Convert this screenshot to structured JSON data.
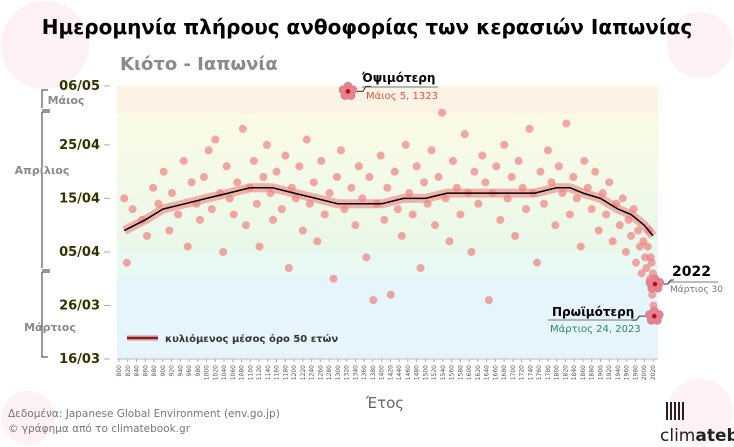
{
  "title": "Ημερομηνία πλήρους ανθοφορίας των κερασιών Ιαπωνίας",
  "subtitle": "Κιότο - Ιαπωνία",
  "source_line": "Δεδομένα: Japanese Global Environment (env.go.jp)",
  "credit_line": "© γράφημα από το climatebook.gr",
  "logo_text_light": "clim",
  "logo_text_bold": "atebook",
  "colors": {
    "points": "#f26d6d",
    "trend": "#000000",
    "band": "#f08080",
    "highlight_latest": "#e8533a",
    "highlight_earliest": "#2e8b57"
  },
  "months": [
    "Μάιος",
    "Απρίλιος",
    "Μάρτιος"
  ],
  "chart_data": {
    "type": "scatter",
    "xlabel": "Έτος",
    "ylabel": "",
    "xlim": [
      800,
      2020
    ],
    "ylim": [
      "16/03",
      "06/05"
    ],
    "x_ticks_step": 20,
    "y_ticks": [
      "06/05",
      "25/04",
      "15/04",
      "05/04",
      "26/03",
      "16/03"
    ],
    "grid": false,
    "legend": {
      "position": "bottom-left",
      "label": "κυλιόμενος μέσος όρο 50 ετών"
    },
    "points": [
      [
        812,
        "15/04"
      ],
      [
        818,
        "03/04"
      ],
      [
        831,
        "13/04"
      ],
      [
        853,
        "11/04"
      ],
      [
        864,
        "08/04"
      ],
      [
        878,
        "17/04"
      ],
      [
        890,
        "14/04"
      ],
      [
        902,
        "20/04"
      ],
      [
        915,
        "09/04"
      ],
      [
        921,
        "16/04"
      ],
      [
        935,
        "12/04"
      ],
      [
        948,
        "22/04"
      ],
      [
        957,
        "06/04"
      ],
      [
        966,
        "18/04"
      ],
      [
        977,
        "14/04"
      ],
      [
        985,
        "11/04"
      ],
      [
        994,
        "19/04"
      ],
      [
        1005,
        "24/04"
      ],
      [
        1012,
        "13/04"
      ],
      [
        1020,
        "26/04"
      ],
      [
        1031,
        "16/04"
      ],
      [
        1038,
        "05/04"
      ],
      [
        1046,
        "21/04"
      ],
      [
        1053,
        "15/04"
      ],
      [
        1062,
        "12/04"
      ],
      [
        1070,
        "18/04"
      ],
      [
        1083,
        "28/04"
      ],
      [
        1090,
        "10/04"
      ],
      [
        1099,
        "17/04"
      ],
      [
        1108,
        "22/04"
      ],
      [
        1115,
        "14/04"
      ],
      [
        1121,
        "06/04"
      ],
      [
        1130,
        "19/04"
      ],
      [
        1138,
        "25/04"
      ],
      [
        1146,
        "16/04"
      ],
      [
        1152,
        "11/04"
      ],
      [
        1160,
        "20/04"
      ],
      [
        1172,
        "13/04"
      ],
      [
        1180,
        "23/04"
      ],
      [
        1188,
        "02/04"
      ],
      [
        1195,
        "17/04"
      ],
      [
        1204,
        "15/04"
      ],
      [
        1212,
        "21/04"
      ],
      [
        1220,
        "09/04"
      ],
      [
        1229,
        "26/04"
      ],
      [
        1236,
        "14/04"
      ],
      [
        1245,
        "18/04"
      ],
      [
        1253,
        "07/04"
      ],
      [
        1262,
        "22/04"
      ],
      [
        1270,
        "12/04"
      ],
      [
        1281,
        "16/04"
      ],
      [
        1290,
        "31/03"
      ],
      [
        1298,
        "19/04"
      ],
      [
        1307,
        "24/04"
      ],
      [
        1315,
        "13/04"
      ],
      [
        1331,
        "17/04"
      ],
      [
        1340,
        "10/04"
      ],
      [
        1348,
        "21/04"
      ],
      [
        1356,
        "15/04"
      ],
      [
        1365,
        "04/04"
      ],
      [
        1372,
        "19/04"
      ],
      [
        1381,
        "27/03"
      ],
      [
        1389,
        "14/04"
      ],
      [
        1398,
        "23/04"
      ],
      [
        1406,
        "11/04"
      ],
      [
        1413,
        "17/04"
      ],
      [
        1421,
        "28/03"
      ],
      [
        1430,
        "20/04"
      ],
      [
        1437,
        "13/04"
      ],
      [
        1446,
        "08/04"
      ],
      [
        1455,
        "25/04"
      ],
      [
        1463,
        "16/04"
      ],
      [
        1471,
        "12/04"
      ],
      [
        1480,
        "21/04"
      ],
      [
        1489,
        "02/04"
      ],
      [
        1497,
        "18/04"
      ],
      [
        1505,
        "14/04"
      ],
      [
        1514,
        "24/04"
      ],
      [
        1522,
        "10/04"
      ],
      [
        1530,
        "19/04"
      ],
      [
        1538,
        "01/05"
      ],
      [
        1546,
        "15/04"
      ],
      [
        1555,
        "07/04"
      ],
      [
        1563,
        "22/04"
      ],
      [
        1572,
        "17/04"
      ],
      [
        1580,
        "12/04"
      ],
      [
        1590,
        "27/04"
      ],
      [
        1598,
        "16/04"
      ],
      [
        1605,
        "05/04"
      ],
      [
        1612,
        "20/04"
      ],
      [
        1621,
        "14/04"
      ],
      [
        1630,
        "23/04"
      ],
      [
        1637,
        "18/04"
      ],
      [
        1645,
        "27/03"
      ],
      [
        1654,
        "16/04"
      ],
      [
        1662,
        "21/04"
      ],
      [
        1671,
        "11/04"
      ],
      [
        1680,
        "25/04"
      ],
      [
        1688,
        "15/04"
      ],
      [
        1697,
        "19/04"
      ],
      [
        1705,
        "08/04"
      ],
      [
        1713,
        "22/04"
      ],
      [
        1722,
        "17/04"
      ],
      [
        1730,
        "13/04"
      ],
      [
        1738,
        "28/04"
      ],
      [
        1746,
        "16/04"
      ],
      [
        1755,
        "03/04"
      ],
      [
        1763,
        "20/04"
      ],
      [
        1771,
        "14/04"
      ],
      [
        1780,
        "24/04"
      ],
      [
        1788,
        "18/04"
      ],
      [
        1797,
        "10/04"
      ],
      [
        1805,
        "21/04"
      ],
      [
        1813,
        "16/04"
      ],
      [
        1822,
        "29/04"
      ],
      [
        1830,
        "12/04"
      ],
      [
        1838,
        "19/04"
      ],
      [
        1846,
        "15/04"
      ],
      [
        1855,
        "06/04"
      ],
      [
        1863,
        "22/04"
      ],
      [
        1871,
        "17/04"
      ],
      [
        1880,
        "13/04"
      ],
      [
        1888,
        "20/04"
      ],
      [
        1896,
        "09/04"
      ],
      [
        1905,
        "16/04"
      ],
      [
        1913,
        "12/04"
      ],
      [
        1920,
        "18/04"
      ],
      [
        1928,
        "07/04"
      ],
      [
        1936,
        "14/04"
      ],
      [
        1944,
        "10/04"
      ],
      [
        1951,
        "15/04"
      ],
      [
        1958,
        "05/04"
      ],
      [
        1964,
        "11/04"
      ],
      [
        1970,
        "08/04"
      ],
      [
        1976,
        "13/04"
      ],
      [
        1981,
        "03/04"
      ],
      [
        1986,
        "09/04"
      ],
      [
        1990,
        "06/04"
      ],
      [
        1994,
        "01/04"
      ],
      [
        1998,
        "07/04"
      ],
      [
        2002,
        "04/04"
      ],
      [
        2005,
        "02/04"
      ],
      [
        2008,
        "06/04"
      ],
      [
        2011,
        "09/04"
      ],
      [
        2013,
        "31/03"
      ],
      [
        2015,
        "04/04"
      ],
      [
        2017,
        "03/04"
      ],
      [
        2018,
        "28/03"
      ],
      [
        2020,
        "01/04"
      ],
      [
        2021,
        "26/03"
      ]
    ],
    "rolling_mean_50y": [
      [
        812,
        "09/04"
      ],
      [
        860,
        "11/04"
      ],
      [
        900,
        "13/04"
      ],
      [
        950,
        "14/04"
      ],
      [
        1000,
        "15/04"
      ],
      [
        1050,
        "16/04"
      ],
      [
        1100,
        "17/04"
      ],
      [
        1150,
        "17/04"
      ],
      [
        1200,
        "16/04"
      ],
      [
        1250,
        "15/04"
      ],
      [
        1300,
        "14/04"
      ],
      [
        1350,
        "14/04"
      ],
      [
        1400,
        "14/04"
      ],
      [
        1450,
        "15/04"
      ],
      [
        1500,
        "15/04"
      ],
      [
        1550,
        "16/04"
      ],
      [
        1600,
        "16/04"
      ],
      [
        1650,
        "16/04"
      ],
      [
        1700,
        "16/04"
      ],
      [
        1750,
        "16/04"
      ],
      [
        1800,
        "17/04"
      ],
      [
        1830,
        "17/04"
      ],
      [
        1860,
        "16/04"
      ],
      [
        1900,
        "15/04"
      ],
      [
        1940,
        "13/04"
      ],
      [
        1970,
        "12/04"
      ],
      [
        2000,
        "10/04"
      ],
      [
        2020,
        "08/04"
      ]
    ],
    "annotations": {
      "latest": {
        "title": "Όψιμότερη",
        "label": "Μάιος 5, 1323",
        "year": 1323,
        "date": "05/05"
      },
      "year2022": {
        "title": "2022",
        "label": "Μάρτιος 30",
        "year": 2022,
        "date": "30/03"
      },
      "earliest": {
        "title": "Πρωϊμότερη",
        "label": "Μάρτιος 24, 2023",
        "year": 2023,
        "date": "24/03"
      }
    }
  }
}
